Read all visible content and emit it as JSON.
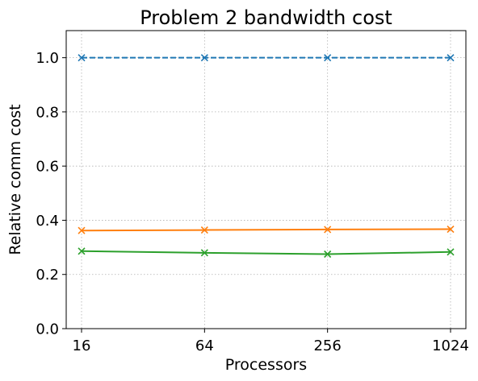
{
  "chart_data": {
    "type": "line",
    "title": "Problem 2 bandwidth cost",
    "xlabel": "Processors",
    "ylabel": "Relative comm cost",
    "categories": [
      "16",
      "64",
      "256",
      "1024"
    ],
    "yticks": [
      "0.0",
      "0.2",
      "0.4",
      "0.6",
      "0.8",
      "1.0"
    ],
    "ylim": [
      0,
      1.1
    ],
    "grid": true,
    "legend": "none",
    "series": [
      {
        "values": [
          1.0,
          1.0,
          1.0,
          1.0
        ],
        "color": "#1f77b4",
        "line_style": "dashed",
        "marker": "x"
      },
      {
        "values": [
          0.362,
          0.364,
          0.366,
          0.367
        ],
        "color": "#ff7f0e",
        "line_style": "solid",
        "marker": "x"
      },
      {
        "values": [
          0.286,
          0.28,
          0.275,
          0.283
        ],
        "color": "#2ca02c",
        "line_style": "solid",
        "marker": "x"
      }
    ]
  }
}
